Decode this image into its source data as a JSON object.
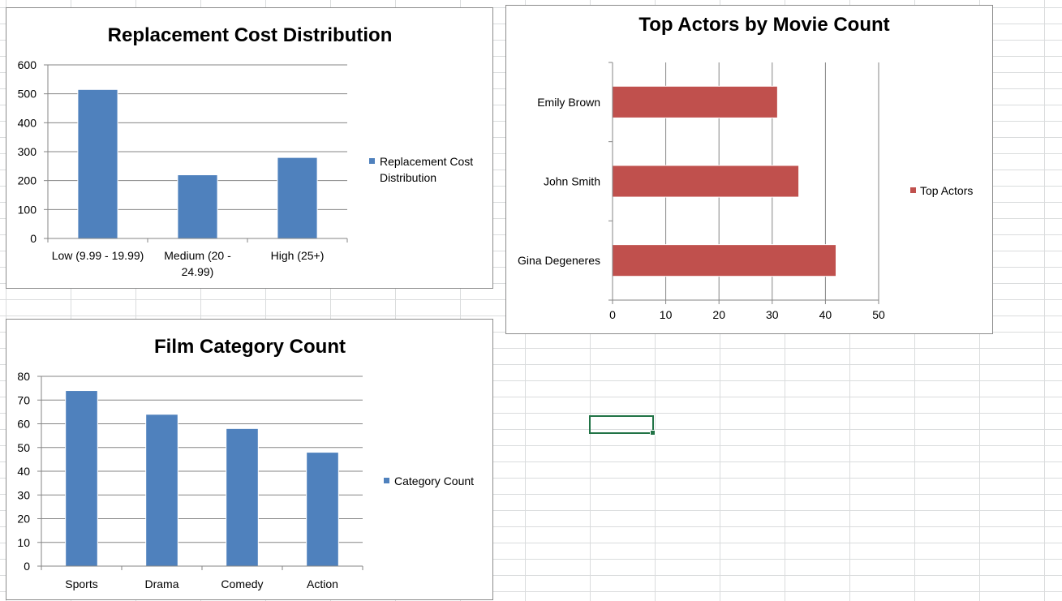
{
  "colors": {
    "series_blue": "#4f81bd",
    "series_red": "#c0504d",
    "gridline": "#868686",
    "selection": "#217346"
  },
  "chart_data": [
    {
      "type": "bar",
      "title": "Replacement Cost Distribution",
      "categories": [
        "Low (9.99 - 19.99)",
        "Medium (20 - 24.99)",
        "High (25+)"
      ],
      "category_lines": [
        [
          "Low (9.99 - 19.99)"
        ],
        [
          "Medium (20 -",
          "24.99)"
        ],
        [
          "High (25+)"
        ]
      ],
      "series": [
        {
          "name": "Replacement Cost Distribution",
          "legend_lines": [
            "Replacement Cost",
            "Distribution"
          ],
          "values": [
            515,
            220,
            280
          ]
        }
      ],
      "ylim": [
        0,
        600
      ],
      "yticks": [
        0,
        100,
        200,
        300,
        400,
        500,
        600
      ],
      "grid": true,
      "legend": "right"
    },
    {
      "type": "bar",
      "orientation": "horizontal",
      "title": "Top Actors by Movie Count",
      "categories": [
        "Emily Brown",
        "John Smith",
        "Gina Degeneres"
      ],
      "series": [
        {
          "name": "Top Actors",
          "values": [
            31,
            35,
            42
          ]
        }
      ],
      "xlim": [
        0,
        50
      ],
      "xticks": [
        0,
        10,
        20,
        30,
        40,
        50
      ],
      "grid": true,
      "legend": "right"
    },
    {
      "type": "bar",
      "title": "Film Category Count",
      "categories": [
        "Sports",
        "Drama",
        "Comedy",
        "Action"
      ],
      "series": [
        {
          "name": "Category Count",
          "values": [
            74,
            64,
            58,
            48
          ]
        }
      ],
      "ylim": [
        0,
        80
      ],
      "yticks": [
        0,
        10,
        20,
        30,
        40,
        50,
        60,
        70,
        80
      ],
      "grid": true,
      "legend": "right"
    }
  ]
}
